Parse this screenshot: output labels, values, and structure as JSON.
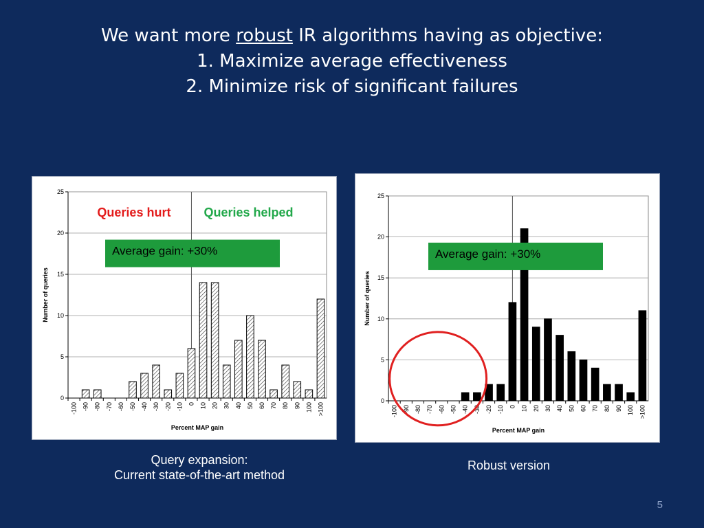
{
  "slide": {
    "title_line1_pre": "We want more ",
    "title_line1_underlined": "robust",
    "title_line1_post": " IR algorithms having as objective:",
    "title_line2": "1.  Maximize average effectiveness",
    "title_line3": "2.  Minimize risk of significant failures",
    "page_number": "5"
  },
  "captions": {
    "left_line1": "Query expansion:",
    "left_line2": "Current state-of-the-art method",
    "right": "Robust version"
  },
  "colors": {
    "background": "#0e2a5c",
    "hurt_label": "#e31b1b",
    "helped_label": "#22a84a",
    "gain_box": "#1e9b3c",
    "circle": "#e02020"
  },
  "chart_data": [
    {
      "type": "bar",
      "bar_style": "hatched",
      "categories": [
        "-100",
        "-90",
        "-80",
        "-70",
        "-60",
        "-50",
        "-40",
        "-30",
        "-20",
        "-10",
        "0",
        "10",
        "20",
        "30",
        "40",
        "50",
        "60",
        "70",
        "80",
        "90",
        "100",
        ">100"
      ],
      "values": [
        0,
        1,
        1,
        0,
        0,
        2,
        3,
        4,
        1,
        3,
        6,
        14,
        14,
        4,
        7,
        10,
        7,
        1,
        4,
        2,
        1,
        12
      ],
      "xlabel": "Percent MAP gain",
      "ylabel": "Number of queries",
      "ylim": [
        0,
        25
      ],
      "yticks": [
        "0",
        "5",
        "10",
        "15",
        "20",
        "25"
      ],
      "grid": true,
      "annotations": {
        "hurt": "Queries hurt",
        "helped": "Queries helped",
        "gain": "Average gain: +30%"
      }
    },
    {
      "type": "bar",
      "bar_style": "solid",
      "categories": [
        "-100",
        "-90",
        "-80",
        "-70",
        "-60",
        "-50",
        "-40",
        "-30",
        "-20",
        "-10",
        "0",
        "10",
        "20",
        "30",
        "40",
        "50",
        "60",
        "70",
        "80",
        "90",
        "100",
        ">100"
      ],
      "values": [
        0,
        0,
        0,
        0,
        0,
        0,
        1,
        1,
        2,
        2,
        12,
        21,
        9,
        10,
        8,
        6,
        5,
        4,
        2,
        2,
        1,
        11
      ],
      "xlabel": "Percent MAP gain",
      "ylabel": "Number of queries",
      "ylim": [
        0,
        25
      ],
      "yticks": [
        "0",
        "5",
        "10",
        "15",
        "20",
        "25"
      ],
      "grid": true,
      "annotations": {
        "gain": "Average gain: +30%"
      }
    }
  ]
}
